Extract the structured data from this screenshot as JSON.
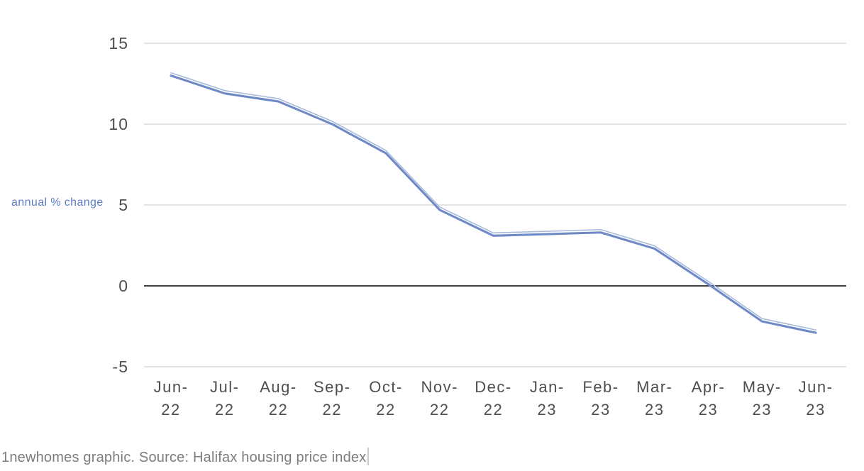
{
  "chart_data": {
    "type": "line",
    "title": "",
    "xlabel": "",
    "ylabel": "annual % change",
    "categories": [
      "Jun-22",
      "Jul-22",
      "Aug-22",
      "Sep-22",
      "Oct-22",
      "Nov-22",
      "Dec-22",
      "Jan-23",
      "Feb-23",
      "Mar-23",
      "Apr-23",
      "May-23",
      "Jun-23"
    ],
    "series": [
      {
        "name": "annual % change",
        "values": [
          13.0,
          11.9,
          11.4,
          10.0,
          8.2,
          4.7,
          3.1,
          3.2,
          3.3,
          2.3,
          0.1,
          -2.2,
          -2.9
        ]
      }
    ],
    "yticks": [
      15,
      10,
      5,
      0,
      -5
    ],
    "ylim": [
      -5,
      15
    ],
    "grid": "horizontal",
    "zero_line": true,
    "legend": "none"
  },
  "caption": {
    "text": "1newhomes graphic. Source: Halifax housing price index"
  },
  "colors": {
    "line_main": "#6e89c6",
    "line_highlight": "#a7bbdd",
    "grid": "#dcdcdc",
    "zero_line": "#3f3f3f",
    "axis_text": "#4e4e50",
    "ylabel_text": "#5b7ec4",
    "caption_text": "#7d7d7d"
  }
}
